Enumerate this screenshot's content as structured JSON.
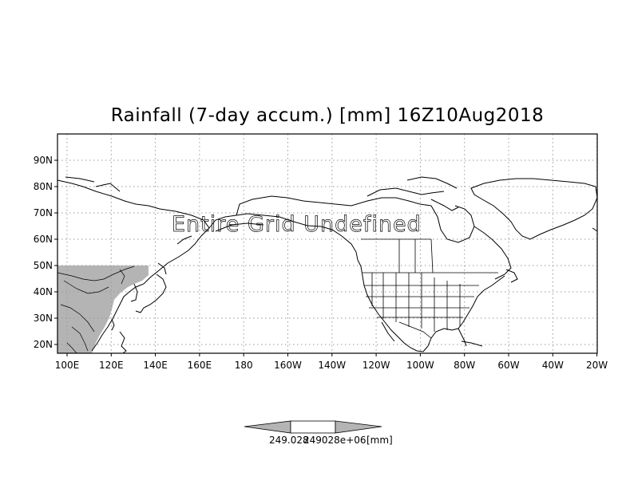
{
  "title": "Rainfall (7-day accum.) [mm] 16Z10Aug2018",
  "overlay_text": "Entire Grid Undefined",
  "lat_labels": [
    "90N",
    "80N",
    "70N",
    "60N",
    "50N",
    "40N",
    "30N",
    "20N"
  ],
  "lon_labels": [
    "100E",
    "120E",
    "140E",
    "160E",
    "180",
    "160W",
    "140W",
    "120W",
    "100W",
    "80W",
    "60W",
    "40W",
    "20W"
  ],
  "colorbar": {
    "label_left": "249.028",
    "label_right": "249028e+06",
    "unit": "[mm]"
  },
  "colors": {
    "land_shade": "#b4b4b4",
    "colorbar_arrow": "#b4b4b4",
    "grid": "#999999"
  }
}
